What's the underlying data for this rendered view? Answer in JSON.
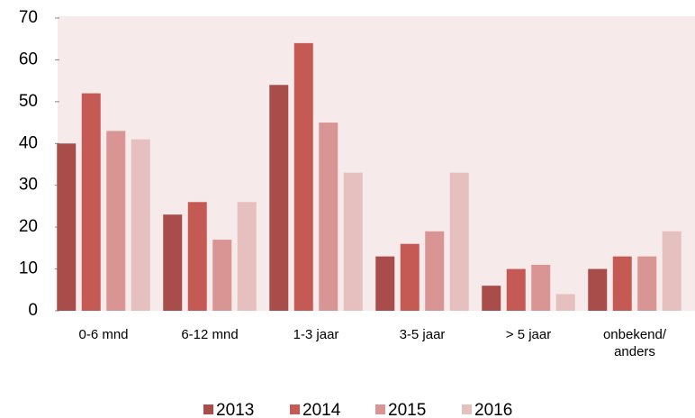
{
  "chart_data": {
    "type": "bar",
    "categories": [
      "0-6 mnd",
      "6-12 mnd",
      "1-3 jaar",
      "3-5 jaar",
      "> 5 jaar",
      "onbekend/ anders"
    ],
    "series": [
      {
        "name": "2013",
        "color": "#a84d4a",
        "values": [
          40,
          23,
          54,
          13,
          6,
          10
        ]
      },
      {
        "name": "2014",
        "color": "#c55a55",
        "values": [
          52,
          26,
          64,
          16,
          10,
          13
        ]
      },
      {
        "name": "2015",
        "color": "#d99594",
        "values": [
          43,
          17,
          45,
          19,
          11,
          13
        ]
      },
      {
        "name": "2016",
        "color": "#e6bfbf",
        "values": [
          41,
          26,
          33,
          33,
          4,
          19
        ]
      }
    ],
    "ylim": [
      0,
      70
    ],
    "yticks": [
      0,
      10,
      20,
      30,
      40,
      50,
      60,
      70
    ],
    "grid": false,
    "legend": "bottom"
  }
}
